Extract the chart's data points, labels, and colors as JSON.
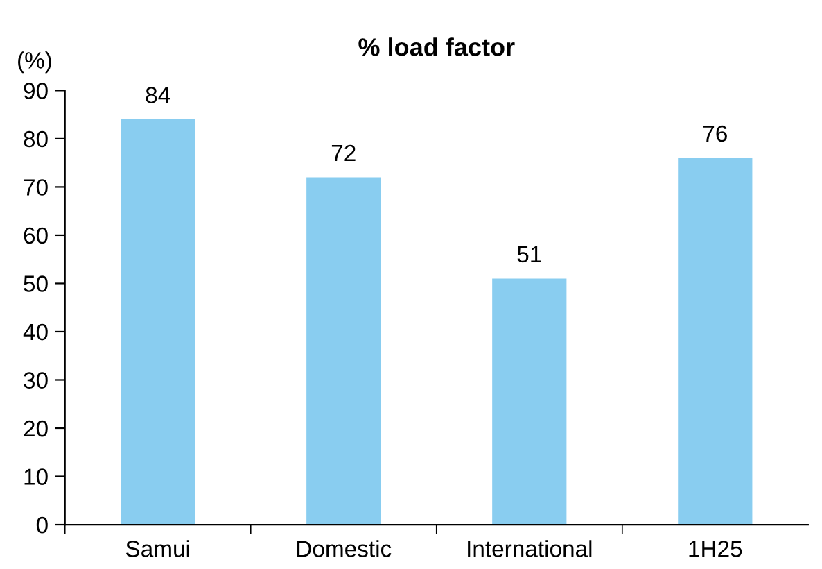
{
  "chart_data": {
    "type": "bar",
    "title": "% load factor",
    "ylabel": "(%)",
    "categories": [
      "Samui",
      "Domestic",
      "International",
      "1H25"
    ],
    "values": [
      84,
      72,
      51,
      76
    ],
    "color": "#89cdf0",
    "ylim": [
      0,
      90
    ],
    "yticks": [
      0,
      10,
      20,
      30,
      40,
      50,
      60,
      70,
      80,
      90
    ],
    "data_labels": true,
    "grid": false,
    "legend": false
  }
}
